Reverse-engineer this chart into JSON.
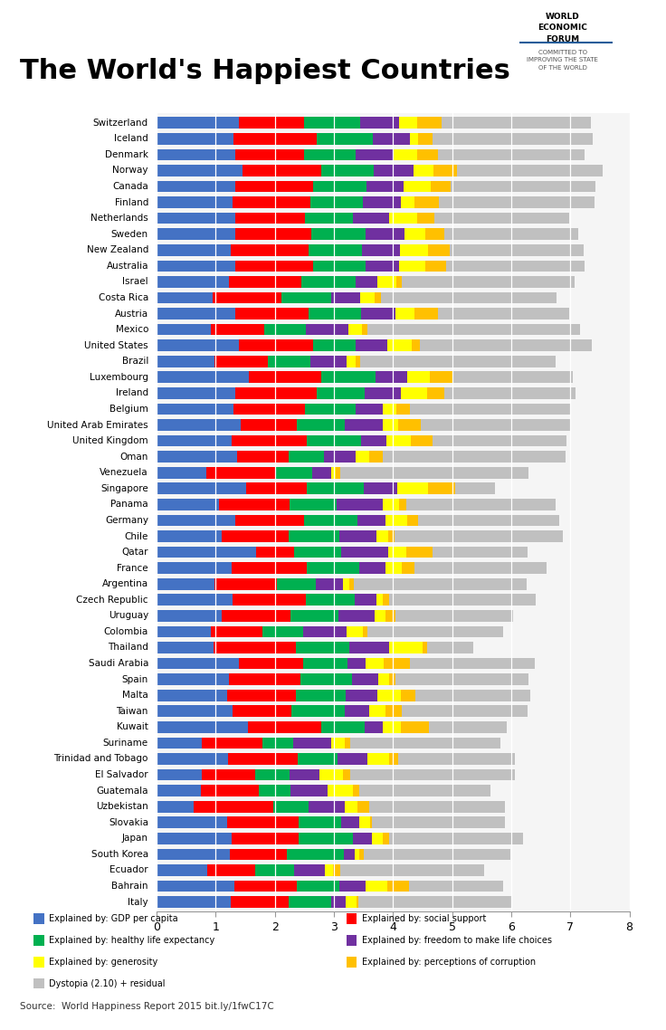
{
  "title": "The World's Happiest Countries",
  "source": "Source:  World Happiness Report 2015 bit.ly/1fwC17C",
  "countries": [
    "Switzerland",
    "Iceland",
    "Denmark",
    "Norway",
    "Canada",
    "Finland",
    "Netherlands",
    "Sweden",
    "New Zealand",
    "Australia",
    "Israel",
    "Costa Rica",
    "Austria",
    "Mexico",
    "United States",
    "Brazil",
    "Luxembourg",
    "Ireland",
    "Belgium",
    "United Arab Emirates",
    "United Kingdom",
    "Oman",
    "Venezuela",
    "Singapore",
    "Panama",
    "Germany",
    "Chile",
    "Qatar",
    "France",
    "Argentina",
    "Czech Republic",
    "Uruguay",
    "Colombia",
    "Thailand",
    "Saudi Arabia",
    "Spain",
    "Malta",
    "Taiwan",
    "Kuwait",
    "Suriname",
    "Trinidad and Tobago",
    "El Salvador",
    "Guatemala",
    "Uzbekistan",
    "Slovakia",
    "Japan",
    "South Korea",
    "Ecuador",
    "Bahrain",
    "Italy"
  ],
  "gdp": [
    1.39651,
    1.30232,
    1.32548,
    1.459,
    1.32629,
    1.29025,
    1.32944,
    1.33171,
    1.25018,
    1.33358,
    1.22857,
    0.95578,
    1.33723,
    0.91854,
    1.39451,
    0.98124,
    1.56499,
    1.33596,
    1.30782,
    1.42727,
    1.26637,
    1.36011,
    0.84731,
    1.52186,
    1.06406,
    1.32792,
    1.10715,
    1.69042,
    1.27778,
    0.98492,
    1.28347,
    1.0962,
    0.91861,
    0.9669,
    1.39541,
    1.23011,
    1.20228,
    1.29098,
    1.55422,
    0.76276,
    1.21183,
    0.75862,
    0.74553,
    0.63244,
    1.20025,
    1.27074,
    1.24461,
    0.86402,
    1.32376,
    1.25114
  ],
  "social_support": [
    1.1067,
    1.40223,
    1.16374,
    1.33095,
    1.32261,
    1.31587,
    1.18051,
    1.28907,
    1.31967,
    1.30923,
    1.22393,
    1.15657,
    1.23287,
    0.90943,
    1.24711,
    0.90179,
    1.21624,
    1.36948,
    1.19684,
    0.94676,
    1.28077,
    0.8712,
    1.17202,
    1.02,
    1.18468,
    1.17278,
    1.12447,
    0.63698,
    1.26038,
    1.05093,
    1.23617,
    1.17688,
    0.87243,
    1.39541,
    1.08182,
    1.20113,
    1.15706,
    0.98508,
    1.24009,
    1.02839,
    1.17202,
    0.90587,
    0.97841,
    1.3409,
    1.20802,
    1.13764,
    0.95774,
    0.80245,
    1.05184,
    0.98124
  ],
  "health": [
    0.94143,
    0.94784,
    0.87464,
    0.88521,
    0.90563,
    0.88911,
    0.81158,
    0.91087,
    0.90837,
    0.89542,
    0.91387,
    0.84523,
    0.89042,
    0.70499,
    0.72745,
    0.71654,
    0.91851,
    0.81733,
    0.86733,
    0.80925,
    0.90943,
    0.60878,
    0.6152,
    0.97217,
    0.79733,
    0.90564,
    0.85857,
    0.79733,
    0.88521,
    0.65435,
    0.83291,
    0.8001,
    0.68488,
    0.89702,
    0.74716,
    0.86943,
    0.84079,
    0.91387,
    0.72394,
    0.51912,
    0.68488,
    0.58419,
    0.53876,
    0.60244,
    0.71044,
    0.91387,
    0.96667,
    0.66466,
    0.72022,
    0.72745
  ],
  "freedom": [
    0.66557,
    0.62877,
    0.64938,
    0.66973,
    0.63297,
    0.64157,
    0.6188,
    0.65764,
    0.63938,
    0.56837,
    0.36432,
    0.48163,
    0.57562,
    0.71372,
    0.54243,
    0.61766,
    0.53984,
    0.61523,
    0.44997,
    0.64157,
    0.43577,
    0.5262,
    0.32285,
    0.56085,
    0.78723,
    0.46518,
    0.63422,
    0.79294,
    0.45424,
    0.4656,
    0.36495,
    0.61466,
    0.73799,
    0.67954,
    0.31702,
    0.45717,
    0.53382,
    0.40562,
    0.30285,
    0.63936,
    0.50522,
    0.51169,
    0.62997,
    0.61001,
    0.31546,
    0.31741,
    0.18297,
    0.51912,
    0.43562,
    0.24681
  ],
  "generosity": [
    0.29678,
    0.14145,
    0.40132,
    0.34537,
    0.45811,
    0.23351,
    0.4761,
    0.36262,
    0.4707,
    0.44083,
    0.33074,
    0.25512,
    0.33088,
    0.23337,
    0.40105,
    0.1466,
    0.37894,
    0.44472,
    0.23554,
    0.26475,
    0.41586,
    0.23786,
    0.07522,
    0.51469,
    0.27234,
    0.3764,
    0.19429,
    0.3109,
    0.278,
    0.11002,
    0.10791,
    0.18624,
    0.27734,
    0.55743,
    0.30826,
    0.18434,
    0.40106,
    0.2818,
    0.31974,
    0.22965,
    0.36879,
    0.38843,
    0.43573,
    0.2205,
    0.17241,
    0.19373,
    0.07504,
    0.14301,
    0.37041,
    0.17457
  ],
  "corruption": [
    0.41978,
    0.24923,
    0.34139,
    0.38896,
    0.32957,
    0.41372,
    0.28855,
    0.31622,
    0.36503,
    0.35637,
    0.08728,
    0.10692,
    0.39729,
    0.08484,
    0.14574,
    0.08484,
    0.40428,
    0.28703,
    0.22628,
    0.3816,
    0.3592,
    0.22519,
    0.07564,
    0.46562,
    0.11408,
    0.1846,
    0.10765,
    0.44654,
    0.2088,
    0.06652,
    0.10761,
    0.17498,
    0.07398,
    0.07478,
    0.43801,
    0.09965,
    0.24042,
    0.27837,
    0.46562,
    0.09019,
    0.14574,
    0.12691,
    0.10765,
    0.18773,
    0.04352,
    0.09461,
    0.07862,
    0.10988,
    0.36545,
    0.02769
  ],
  "dystopia": [
    2.51738,
    2.70201,
    2.49204,
    2.47078,
    2.45176,
    2.61955,
    2.27394,
    2.27394,
    2.26683,
    2.34157,
    2.92741,
    2.96997,
    2.22275,
    3.60214,
    2.90685,
    3.30837,
    2.0154,
    2.21791,
    2.70702,
    2.53325,
    2.26066,
    3.09375,
    3.1914,
    0.66801,
    2.52778,
    2.38562,
    2.84809,
    1.60728,
    2.23801,
    2.92677,
    2.47476,
    1.98218,
    2.30014,
    0.79335,
    2.1122,
    2.24999,
    1.94862,
    2.11714,
    1.3219,
    2.55001,
    1.97059,
    2.79186,
    2.21958,
    2.30547,
    2.25139,
    2.27388,
    2.47544,
    2.44362,
    1.60278,
    2.59529
  ],
  "colors": {
    "gdp": "#4472C4",
    "social_support": "#FF0000",
    "health": "#00B050",
    "freedom": "#7030A0",
    "generosity": "#FFFF00",
    "corruption": "#FFC000",
    "dystopia": "#C0C0C0"
  },
  "legend_labels": [
    "Explained by: GDP per capita",
    "Explained by: social support",
    "Explained by: healthy life expectancy",
    "Explained by: freedom to make life choices",
    "Explained by: generosity",
    "Explained by: perceptions of corruption",
    "Dystopia (2.10) + residual"
  ],
  "legend_colors": [
    "#4472C4",
    "#FF0000",
    "#00B050",
    "#7030A0",
    "#FFFF00",
    "#FFC000",
    "#C0C0C0"
  ],
  "xlim": [
    0,
    8
  ],
  "xticks": [
    0,
    1,
    2,
    3,
    4,
    5,
    6,
    7,
    8
  ],
  "background_color": "#FFFFFF",
  "bar_height": 0.72
}
